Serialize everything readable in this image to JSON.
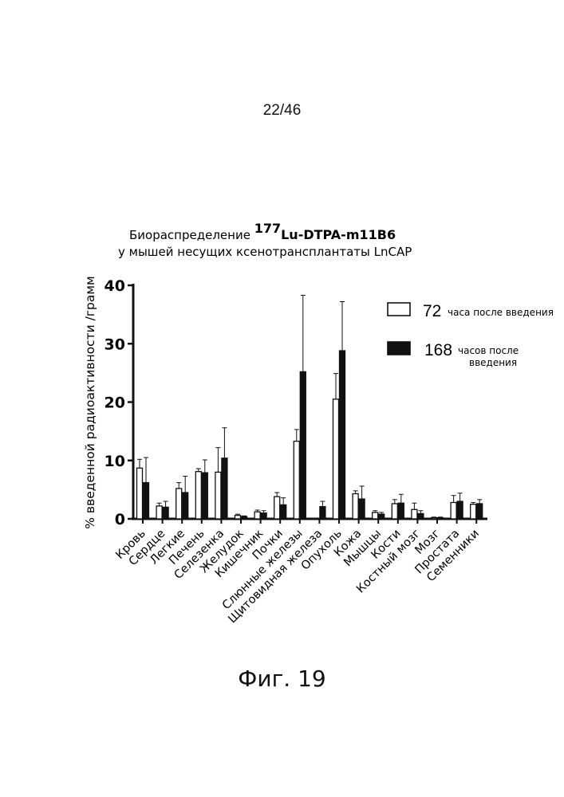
{
  "page": {
    "number": "22/46",
    "caption": "Фиг. 19"
  },
  "chart_data": {
    "type": "bar",
    "title": {
      "line1_prefix": "Биораспределение ",
      "superscript": "177",
      "line1_bold": "Lu-DTPA-m11B6",
      "line2": "у мышей несущих ксенотрансплантаты LnCAP"
    },
    "xlabel": "",
    "ylabel": "% введенной радиоактивности /грамм",
    "ylim": [
      0,
      40
    ],
    "yticks": [
      0,
      10,
      20,
      30,
      40
    ],
    "grid": false,
    "legend_position": "top-right",
    "categories": [
      "Кровь",
      "Сердце",
      "Легкие",
      "Печень",
      "Селезенка",
      "Желудок",
      "Кишечник",
      "Почки",
      "Слюнные железы",
      "Щитовидная железа",
      "Опухоль",
      "Кожа",
      "Мышцы",
      "Кости",
      "Костный мозг",
      "Мозг",
      "Простата",
      "Семенники"
    ],
    "series": [
      {
        "name": "72 часа после введения",
        "legend_big": "72",
        "legend_small": "часа после введения",
        "fill": "#ffffff",
        "values": [
          8.7,
          2.2,
          5.2,
          8.1,
          8.0,
          0.6,
          1.2,
          3.8,
          13.3,
          0.0,
          20.5,
          4.3,
          1.1,
          2.6,
          1.6,
          0.2,
          2.8,
          2.5
        ],
        "errors": [
          1.5,
          0.5,
          1.0,
          0.5,
          4.2,
          0.2,
          0.3,
          0.7,
          2.0,
          0.0,
          4.4,
          0.5,
          0.3,
          0.7,
          1.1,
          0.1,
          1.2,
          0.3
        ]
      },
      {
        "name": "168 часов после введения",
        "legend_big": "168",
        "legend_small_line1": "часов после",
        "legend_small_line2": "введения",
        "fill": "#111111",
        "values": [
          6.2,
          2.0,
          4.5,
          7.9,
          10.4,
          0.4,
          1.0,
          2.4,
          25.2,
          2.1,
          28.8,
          3.4,
          0.8,
          2.7,
          0.9,
          0.2,
          3.0,
          2.6
        ],
        "errors": [
          4.3,
          1.0,
          2.8,
          2.2,
          5.2,
          0.1,
          0.4,
          1.2,
          13.1,
          0.9,
          8.4,
          2.2,
          0.3,
          1.5,
          0.5,
          0.1,
          1.4,
          0.7
        ]
      }
    ]
  }
}
